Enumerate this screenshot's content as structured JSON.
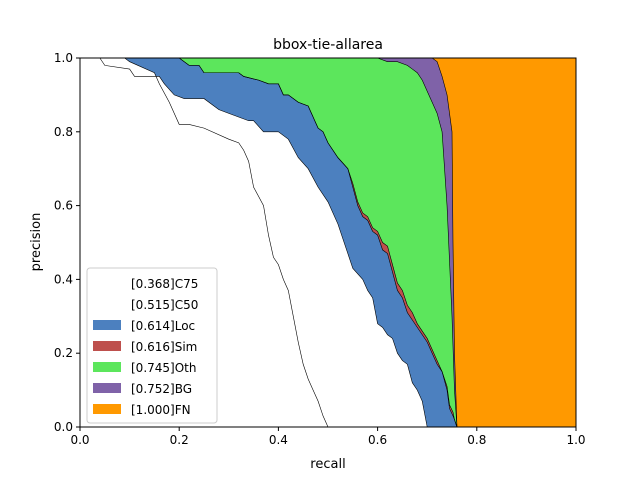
{
  "chart_data": {
    "type": "area",
    "title": "bbox-tie-allarea",
    "xlabel": "recall",
    "ylabel": "precision",
    "xlim": [
      0,
      1
    ],
    "ylim": [
      0,
      1
    ],
    "xticks": [
      "0.0",
      "0.2",
      "0.4",
      "0.6",
      "0.8",
      "1.0"
    ],
    "yticks": [
      "0.0",
      "0.2",
      "0.4",
      "0.6",
      "0.8",
      "1.0"
    ],
    "grid": false,
    "legend_position": "lower-left",
    "legend": [
      {
        "label": "[0.368]C75",
        "color": "#ffffff"
      },
      {
        "label": "[0.515]C50",
        "color": "#ffffff"
      },
      {
        "label": "[0.614]Loc",
        "color": "#4c80bf"
      },
      {
        "label": "[0.616]Sim",
        "color": "#be504d"
      },
      {
        "label": "[0.745]Oth",
        "color": "#5ce65c"
      },
      {
        "label": "[0.752]BG",
        "color": "#7f62a8"
      },
      {
        "label": "[1.000]FN",
        "color": "#ff9900"
      }
    ],
    "series": [
      {
        "name": "[0.368]C75",
        "color": "#ffffff",
        "x": [
          0,
          0.09,
          0.1,
          0.15,
          0.16,
          0.18,
          0.2,
          0.22,
          0.25,
          0.3,
          0.32,
          0.33,
          0.34,
          0.35,
          0.37,
          0.38,
          0.39,
          0.4,
          0.41,
          0.42,
          0.43,
          0.44,
          0.45,
          0.46,
          0.47,
          0.48,
          0.49,
          0.5
        ],
        "y": [
          1.0,
          1.0,
          0.99,
          0.96,
          0.93,
          0.88,
          0.82,
          0.82,
          0.81,
          0.78,
          0.77,
          0.75,
          0.72,
          0.65,
          0.6,
          0.52,
          0.46,
          0.44,
          0.4,
          0.37,
          0.3,
          0.23,
          0.17,
          0.13,
          0.1,
          0.07,
          0.03,
          0.0
        ]
      },
      {
        "name": "[0.515]C50",
        "color": "#ffffff",
        "x": [
          0,
          0.04,
          0.05,
          0.1,
          0.11,
          0.16,
          0.17,
          0.19,
          0.21,
          0.25,
          0.28,
          0.3,
          0.34,
          0.35,
          0.37,
          0.4,
          0.42,
          0.44,
          0.46,
          0.48,
          0.5,
          0.52,
          0.54,
          0.55,
          0.57,
          0.58,
          0.59,
          0.6,
          0.61,
          0.62,
          0.63,
          0.64,
          0.65,
          0.66,
          0.67,
          0.68,
          0.69,
          0.7
        ],
        "y": [
          1.0,
          1.0,
          0.98,
          0.97,
          0.95,
          0.95,
          0.93,
          0.9,
          0.89,
          0.89,
          0.86,
          0.85,
          0.83,
          0.83,
          0.8,
          0.8,
          0.78,
          0.73,
          0.7,
          0.65,
          0.61,
          0.55,
          0.47,
          0.43,
          0.4,
          0.37,
          0.35,
          0.28,
          0.27,
          0.25,
          0.24,
          0.2,
          0.18,
          0.17,
          0.12,
          0.1,
          0.07,
          0.0
        ]
      },
      {
        "name": "[0.614]Loc",
        "color": "#4c80bf",
        "x": [
          0,
          0.1,
          0.2,
          0.22,
          0.24,
          0.25,
          0.32,
          0.33,
          0.36,
          0.38,
          0.4,
          0.41,
          0.42,
          0.44,
          0.46,
          0.48,
          0.49,
          0.5,
          0.52,
          0.54,
          0.55,
          0.56,
          0.57,
          0.58,
          0.59,
          0.6,
          0.61,
          0.62,
          0.63,
          0.64,
          0.65,
          0.66,
          0.67,
          0.68,
          0.69,
          0.7,
          0.71,
          0.72,
          0.73,
          0.74,
          0.745,
          0.752,
          0.755,
          0.76
        ],
        "y": [
          1.0,
          1.0,
          1.0,
          0.98,
          0.98,
          0.96,
          0.96,
          0.95,
          0.94,
          0.93,
          0.93,
          0.9,
          0.9,
          0.88,
          0.87,
          0.81,
          0.8,
          0.77,
          0.73,
          0.7,
          0.65,
          0.6,
          0.57,
          0.56,
          0.53,
          0.52,
          0.48,
          0.47,
          0.42,
          0.37,
          0.35,
          0.31,
          0.29,
          0.27,
          0.25,
          0.23,
          0.2,
          0.17,
          0.15,
          0.1,
          0.05,
          0.03,
          0.02,
          0.0
        ]
      },
      {
        "name": "[0.616]Sim",
        "color": "#be504d",
        "x": [
          0,
          0.1,
          0.2,
          0.22,
          0.24,
          0.25,
          0.32,
          0.33,
          0.36,
          0.38,
          0.4,
          0.41,
          0.42,
          0.44,
          0.46,
          0.48,
          0.49,
          0.5,
          0.52,
          0.54,
          0.55,
          0.56,
          0.57,
          0.58,
          0.59,
          0.6,
          0.61,
          0.62,
          0.63,
          0.64,
          0.65,
          0.66,
          0.67,
          0.68,
          0.69,
          0.7,
          0.71,
          0.72,
          0.73,
          0.74,
          0.745,
          0.752,
          0.755,
          0.76
        ],
        "y": [
          1.0,
          1.0,
          1.0,
          0.98,
          0.98,
          0.96,
          0.96,
          0.95,
          0.94,
          0.93,
          0.93,
          0.9,
          0.9,
          0.88,
          0.87,
          0.81,
          0.8,
          0.77,
          0.73,
          0.7,
          0.66,
          0.61,
          0.58,
          0.57,
          0.54,
          0.53,
          0.5,
          0.49,
          0.44,
          0.39,
          0.37,
          0.33,
          0.31,
          0.28,
          0.26,
          0.24,
          0.21,
          0.18,
          0.15,
          0.11,
          0.06,
          0.04,
          0.02,
          0.0
        ]
      },
      {
        "name": "[0.745]Oth",
        "color": "#5ce65c",
        "x": [
          0,
          0.5,
          0.52,
          0.55,
          0.58,
          0.6,
          0.62,
          0.64,
          0.66,
          0.67,
          0.68,
          0.69,
          0.7,
          0.71,
          0.72,
          0.73,
          0.74,
          0.75,
          0.755,
          0.76
        ],
        "y": [
          1.0,
          1.0,
          1.0,
          1.0,
          1.0,
          1.0,
          0.99,
          0.99,
          0.98,
          0.97,
          0.96,
          0.94,
          0.91,
          0.88,
          0.85,
          0.8,
          0.6,
          0.3,
          0.1,
          0.0
        ]
      },
      {
        "name": "[0.752]BG",
        "color": "#7f62a8",
        "x": [
          0,
          0.7,
          0.71,
          0.72,
          0.73,
          0.74,
          0.75,
          0.752,
          0.755,
          0.76
        ],
        "y": [
          1.0,
          1.0,
          1.0,
          0.99,
          0.95,
          0.9,
          0.8,
          0.5,
          0.2,
          0.0
        ]
      },
      {
        "name": "[1.000]FN",
        "color": "#ff9900",
        "x": [
          0,
          0.75,
          1.0
        ],
        "y": [
          1.0,
          1.0,
          1.0
        ]
      }
    ]
  }
}
